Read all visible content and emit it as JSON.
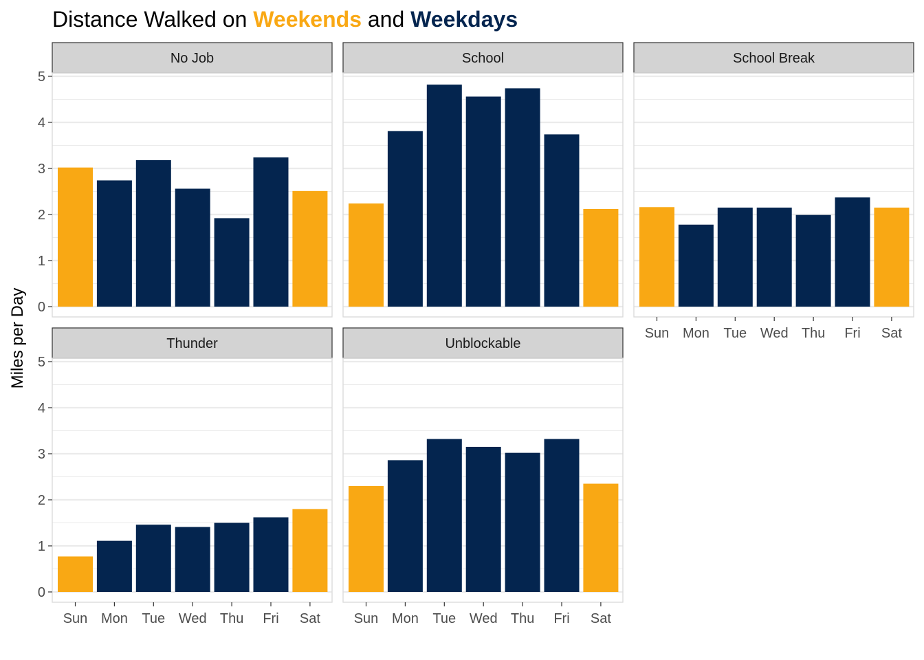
{
  "title": {
    "prefix": "Distance Walked on ",
    "weekend_word": "Weekends",
    "connector": " and ",
    "weekday_word": "Weekdays"
  },
  "colors": {
    "weekend": "#F9A814",
    "weekday": "#04254F",
    "strip_bg": "#D3D3D3",
    "grid": "#EBEBEB"
  },
  "chart_data": {
    "type": "bar",
    "ylabel": "Miles per Day",
    "xlabel": "",
    "ylim": [
      0,
      5
    ],
    "y_ticks": [
      0,
      1,
      2,
      3,
      4,
      5
    ],
    "categories": [
      "Sun",
      "Mon",
      "Tue",
      "Wed",
      "Thu",
      "Fri",
      "Sat"
    ],
    "weekend_categories": [
      "Sun",
      "Sat"
    ],
    "grid": true,
    "panels": [
      {
        "name": "No Job",
        "values": [
          3.02,
          2.74,
          3.18,
          2.56,
          1.92,
          3.24,
          2.51
        ]
      },
      {
        "name": "School",
        "values": [
          2.24,
          3.81,
          4.82,
          4.56,
          4.74,
          3.74,
          2.12
        ]
      },
      {
        "name": "School Break",
        "values": [
          2.16,
          1.78,
          2.15,
          2.15,
          1.99,
          2.37,
          2.15
        ]
      },
      {
        "name": "Thunder",
        "values": [
          0.77,
          1.11,
          1.46,
          1.41,
          1.5,
          1.62,
          1.8
        ]
      },
      {
        "name": "Unblockable",
        "values": [
          2.3,
          2.86,
          3.32,
          3.15,
          3.02,
          3.32,
          2.35
        ]
      }
    ]
  }
}
